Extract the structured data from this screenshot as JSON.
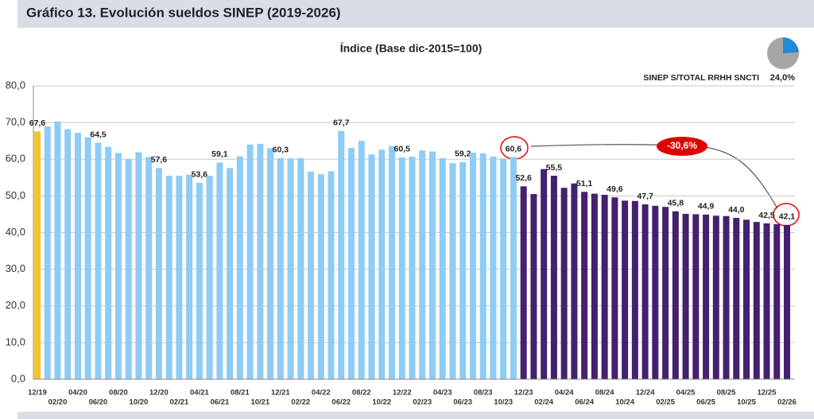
{
  "chart_data": {
    "type": "bar",
    "title": "Gráfico 13. Evolución sueldos SINEP (2019-2026)",
    "subtitle": "Índice (Base dic-2015=100)",
    "annotation": "-30,6%",
    "inset": {
      "type": "pie",
      "label": "SINEP S/TOTAL RRHH SNCTI",
      "value": 24,
      "value_label": "24,0%",
      "color": "#1f8ad6",
      "rest_color": "#a6a6a6"
    },
    "categories": [
      "12/19",
      null,
      "02/20",
      null,
      "04/20",
      null,
      "06/20",
      null,
      "08/20",
      null,
      "10/20",
      null,
      "12/20",
      null,
      "02/21",
      null,
      "04/21",
      null,
      "06/21",
      null,
      "08/21",
      null,
      "10/21",
      null,
      "12/21",
      null,
      "02/22",
      null,
      "04/22",
      null,
      "06/22",
      null,
      "08/22",
      null,
      "10/22",
      null,
      "12/22",
      null,
      "02/23",
      null,
      "04/23",
      null,
      "06/23",
      null,
      "08/23",
      null,
      "10/23",
      null,
      "12/23",
      null,
      "02/24",
      null,
      "04/24",
      null,
      "06/24",
      null,
      "08/24",
      null,
      "10/24",
      null,
      "12/24",
      null,
      "02/25",
      null,
      "04/25",
      null,
      "06/25",
      null,
      "08/25",
      null,
      "10/25",
      null,
      "12/25",
      null,
      "02/26"
    ],
    "values": [
      67.6,
      69.0,
      70.3,
      68.2,
      67.2,
      66.0,
      64.5,
      63.4,
      61.7,
      60.0,
      61.9,
      60.6,
      57.6,
      55.5,
      55.5,
      55.8,
      53.6,
      55.5,
      59.1,
      57.6,
      60.8,
      64.0,
      64.2,
      63.0,
      60.3,
      60.2,
      60.3,
      56.6,
      55.9,
      56.7,
      67.7,
      63.1,
      65.0,
      61.3,
      62.6,
      63.6,
      60.5,
      60.7,
      62.4,
      62.1,
      60.3,
      58.9,
      59.2,
      61.8,
      61.6,
      60.7,
      60.2,
      60.6,
      52.6,
      50.5,
      57.3,
      55.5,
      52.2,
      53.4,
      51.1,
      50.6,
      50.3,
      49.6,
      48.7,
      48.6,
      47.7,
      47.3,
      47.0,
      45.8,
      45.1,
      45.0,
      44.9,
      44.6,
      44.5,
      44.0,
      43.5,
      42.9,
      42.5,
      42.3,
      42.1
    ],
    "value_labels": [
      "67,6",
      null,
      null,
      null,
      null,
      null,
      "64,5",
      null,
      null,
      null,
      null,
      null,
      "57,6",
      null,
      null,
      null,
      "53,6",
      null,
      "59,1",
      null,
      null,
      null,
      null,
      null,
      "60,3",
      null,
      null,
      null,
      null,
      null,
      "67,7",
      null,
      null,
      null,
      null,
      null,
      "60,5",
      null,
      null,
      null,
      null,
      null,
      "59,2",
      null,
      null,
      null,
      null,
      "60,6",
      "52,6",
      null,
      null,
      "55,5",
      null,
      null,
      "51,1",
      null,
      null,
      "49,6",
      null,
      null,
      "47,7",
      null,
      null,
      "45,8",
      null,
      null,
      "44,9",
      null,
      null,
      "44,0",
      null,
      null,
      "42,5",
      null,
      "42,1"
    ],
    "colors": [
      "#f7c52b",
      "#8ecbf5",
      "#8ecbf5",
      "#8ecbf5",
      "#8ecbf5",
      "#8ecbf5",
      "#8ecbf5",
      "#8ecbf5",
      "#8ecbf5",
      "#8ecbf5",
      "#8ecbf5",
      "#8ecbf5",
      "#8ecbf5",
      "#8ecbf5",
      "#8ecbf5",
      "#8ecbf5",
      "#8ecbf5",
      "#8ecbf5",
      "#8ecbf5",
      "#8ecbf5",
      "#8ecbf5",
      "#8ecbf5",
      "#8ecbf5",
      "#8ecbf5",
      "#8ecbf5",
      "#8ecbf5",
      "#8ecbf5",
      "#8ecbf5",
      "#8ecbf5",
      "#8ecbf5",
      "#8ecbf5",
      "#8ecbf5",
      "#8ecbf5",
      "#8ecbf5",
      "#8ecbf5",
      "#8ecbf5",
      "#8ecbf5",
      "#8ecbf5",
      "#8ecbf5",
      "#8ecbf5",
      "#8ecbf5",
      "#8ecbf5",
      "#8ecbf5",
      "#8ecbf5",
      "#8ecbf5",
      "#8ecbf5",
      "#8ecbf5",
      "#8ecbf5",
      "#45206e",
      "#45206e",
      "#45206e",
      "#45206e",
      "#45206e",
      "#45206e",
      "#45206e",
      "#45206e",
      "#45206e",
      "#45206e",
      "#45206e",
      "#45206e",
      "#45206e",
      "#45206e",
      "#45206e",
      "#45206e",
      "#45206e",
      "#45206e",
      "#45206e",
      "#45206e",
      "#45206e",
      "#45206e",
      "#45206e",
      "#45206e",
      "#45206e",
      "#45206e",
      "#45206e"
    ],
    "ylim": [
      0,
      80
    ],
    "yticks": [
      {
        "value": 0,
        "label": "0,0"
      },
      {
        "value": 10,
        "label": "10,0"
      },
      {
        "value": 20,
        "label": "20,0"
      },
      {
        "value": 30,
        "label": "30,0"
      },
      {
        "value": 40,
        "label": "40,0"
      },
      {
        "value": 50,
        "label": "50,0"
      },
      {
        "value": 60,
        "label": "60,0"
      },
      {
        "value": 70,
        "label": "70,0"
      },
      {
        "value": 80,
        "label": "80,0"
      }
    ],
    "grid": true
  }
}
